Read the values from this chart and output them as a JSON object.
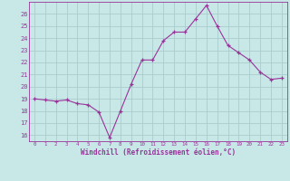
{
  "x": [
    0,
    1,
    2,
    3,
    4,
    5,
    6,
    7,
    8,
    9,
    10,
    11,
    12,
    13,
    14,
    15,
    16,
    17,
    18,
    19,
    20,
    21,
    22,
    23
  ],
  "y": [
    19.0,
    18.9,
    18.8,
    18.9,
    18.6,
    18.5,
    17.9,
    15.8,
    18.0,
    20.2,
    22.2,
    22.2,
    23.8,
    24.5,
    24.5,
    25.6,
    26.7,
    25.0,
    23.4,
    22.8,
    22.2,
    21.2,
    20.6,
    20.7
  ],
  "line_color": "#993399",
  "marker": "+",
  "bg_color": "#c8e8e8",
  "grid_color": "#aacccc",
  "xlabel": "Windchill (Refroidissement éolien,°C)",
  "xlabel_color": "#993399",
  "ylim": [
    15.5,
    27.0
  ],
  "xlim": [
    -0.5,
    23.5
  ],
  "yticks": [
    16,
    17,
    18,
    19,
    20,
    21,
    22,
    23,
    24,
    25,
    26
  ],
  "xticks": [
    0,
    1,
    2,
    3,
    4,
    5,
    6,
    7,
    8,
    9,
    10,
    11,
    12,
    13,
    14,
    15,
    16,
    17,
    18,
    19,
    20,
    21,
    22,
    23
  ],
  "tick_color": "#993399",
  "spine_color": "#993399"
}
